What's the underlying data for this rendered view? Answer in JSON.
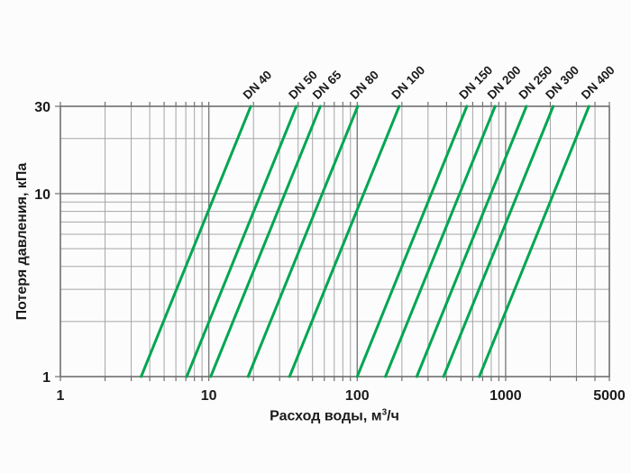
{
  "page": {
    "background": "#fcfcfc"
  },
  "chart_data": {
    "type": "line",
    "title": "",
    "xlabel": "Расход воды, м³/ч",
    "xlabel_parts": {
      "prefix": "Расход воды, м",
      "sup": "3",
      "suffix": "/ч"
    },
    "ylabel": "Потеря давления, кПа",
    "x_axis": {
      "scale": "log",
      "min": 1,
      "max": 5000,
      "ticks": [
        1,
        10,
        100,
        1000,
        5000
      ],
      "tick_labels": [
        "1",
        "10",
        "100",
        "1000",
        "5000"
      ]
    },
    "y_axis": {
      "scale": "log",
      "min": 1,
      "max": 30,
      "ticks": [
        1,
        10,
        30
      ],
      "tick_labels": [
        "1",
        "10",
        "30"
      ]
    },
    "grid": {
      "x_minor": [
        2,
        3,
        4,
        5,
        6,
        7,
        8,
        9,
        20,
        30,
        40,
        50,
        60,
        70,
        80,
        90,
        200,
        300,
        400,
        500,
        600,
        700,
        800,
        900,
        2000,
        3000,
        4000
      ],
      "x_major": [
        10,
        100,
        1000
      ],
      "y_minor": [
        2,
        3,
        4,
        5,
        6,
        7,
        8,
        9,
        20
      ],
      "y_major": [
        10
      ]
    },
    "pressure_exponent": 2,
    "series": [
      {
        "name": "DN 40",
        "flow_at_1kpa": 3.5
      },
      {
        "name": "DN 50",
        "flow_at_1kpa": 7.1
      },
      {
        "name": "DN 65",
        "flow_at_1kpa": 10.3
      },
      {
        "name": "DN 80",
        "flow_at_1kpa": 18.4
      },
      {
        "name": "DN 100",
        "flow_at_1kpa": 35
      },
      {
        "name": "DN 150",
        "flow_at_1kpa": 100
      },
      {
        "name": "DN 200",
        "flow_at_1kpa": 155
      },
      {
        "name": "DN 250",
        "flow_at_1kpa": 252
      },
      {
        "name": "DN 300",
        "flow_at_1kpa": 382
      },
      {
        "name": "DN 400",
        "flow_at_1kpa": 665
      }
    ],
    "legend": "none",
    "colors": {
      "line": "#00a651",
      "grid_minor": "#a6a6a6",
      "grid_major": "#7e7e7e",
      "border": "#6f6f6f",
      "text": "#1b1b1b"
    }
  }
}
